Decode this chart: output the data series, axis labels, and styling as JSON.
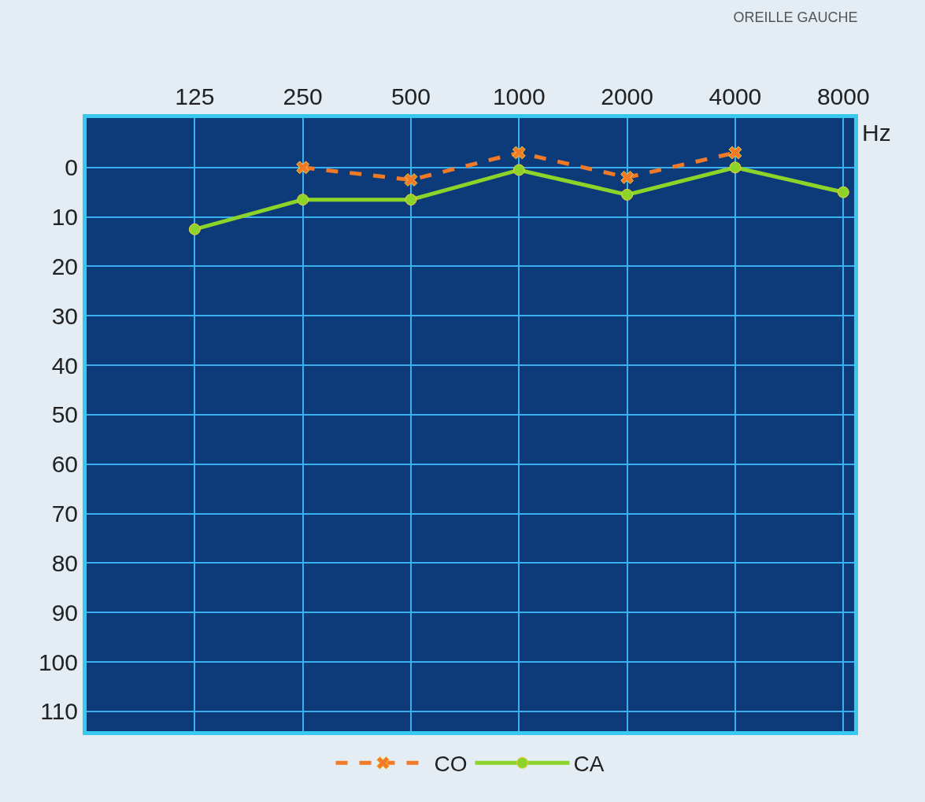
{
  "chart_data": {
    "type": "line",
    "title": "OREILLE GAUCHE",
    "xlabel": "Hz",
    "categories": [
      "125",
      "250",
      "500",
      "1000",
      "2000",
      "4000",
      "8000"
    ],
    "series": [
      {
        "name": "CO",
        "color": "#f07a28",
        "values": [
          null,
          0,
          2.5,
          -3,
          2,
          -3,
          null
        ],
        "marker": "cross",
        "line_style": "dashed"
      },
      {
        "name": "CA",
        "color": "#8cd42a",
        "values": [
          12.5,
          6.5,
          6.5,
          0.5,
          5.5,
          0,
          5
        ],
        "marker": "circle",
        "line_style": "solid"
      }
    ],
    "ylim": [
      114,
      -10
    ],
    "yticks": [
      0,
      10,
      20,
      30,
      40,
      50,
      60,
      70,
      80,
      90,
      100,
      110
    ],
    "grid": true,
    "legend": "bottom"
  }
}
